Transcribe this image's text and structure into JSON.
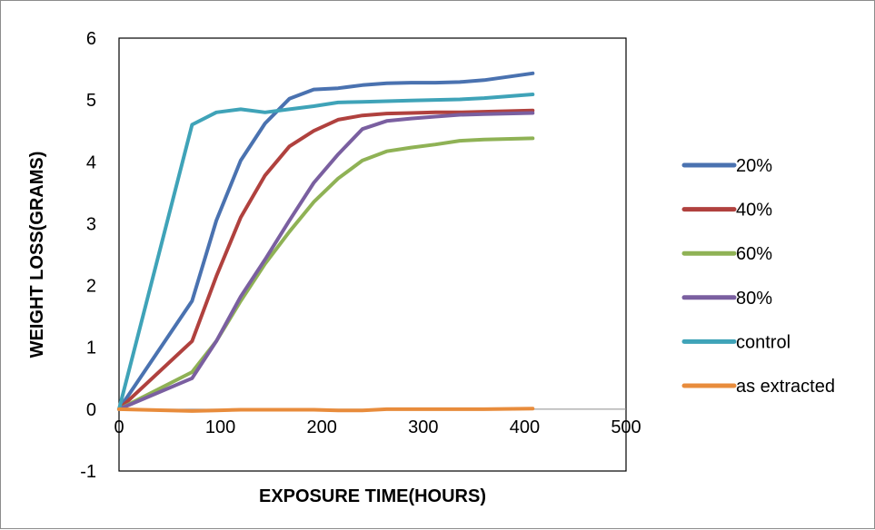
{
  "chart_data": {
    "type": "line",
    "title": "",
    "xlabel": "EXPOSURE TIME(HOURS)",
    "ylabel": "WEIGHT LOSS(GRAMS)",
    "xlim": [
      0,
      500
    ],
    "ylim": [
      -1,
      6
    ],
    "x_ticks": [
      "0",
      "100",
      "200",
      "300",
      "400",
      "500"
    ],
    "y_ticks": [
      "6",
      "5",
      "4",
      "3",
      "2",
      "1",
      "0",
      "-1"
    ],
    "grid": false,
    "legend_position": "right",
    "series": [
      {
        "name": "20%",
        "color": "#4a72b0",
        "x": [
          0,
          72,
          96,
          120,
          144,
          168,
          192,
          216,
          240,
          264,
          288,
          312,
          336,
          360,
          408
        ],
        "y": [
          0,
          1.75,
          3.05,
          4.02,
          4.62,
          5.02,
          5.17,
          5.19,
          5.24,
          5.27,
          5.28,
          5.28,
          5.29,
          5.32,
          5.43
        ]
      },
      {
        "name": "40%",
        "color": "#b0413e",
        "x": [
          0,
          72,
          96,
          120,
          144,
          168,
          192,
          216,
          240,
          264,
          288,
          312,
          336,
          360,
          408
        ],
        "y": [
          0,
          1.1,
          2.15,
          3.1,
          3.78,
          4.25,
          4.5,
          4.68,
          4.75,
          4.78,
          4.79,
          4.8,
          4.8,
          4.81,
          4.83
        ]
      },
      {
        "name": "60%",
        "color": "#8fb255",
        "x": [
          0,
          72,
          96,
          120,
          144,
          168,
          192,
          216,
          240,
          264,
          288,
          312,
          336,
          360,
          408
        ],
        "y": [
          0,
          0.6,
          1.1,
          1.75,
          2.35,
          2.87,
          3.35,
          3.73,
          4.02,
          4.17,
          4.23,
          4.28,
          4.34,
          4.36,
          4.38
        ]
      },
      {
        "name": "80%",
        "color": "#7a5fa0",
        "x": [
          0,
          72,
          96,
          120,
          144,
          168,
          192,
          216,
          240,
          264,
          288,
          312,
          336,
          360,
          408
        ],
        "y": [
          0,
          0.5,
          1.1,
          1.82,
          2.42,
          3.05,
          3.66,
          4.12,
          4.53,
          4.66,
          4.7,
          4.73,
          4.76,
          4.77,
          4.79
        ]
      },
      {
        "name": "control",
        "color": "#3fa3b8",
        "x": [
          0,
          72,
          96,
          120,
          144,
          168,
          192,
          216,
          240,
          264,
          288,
          312,
          336,
          360,
          408
        ],
        "y": [
          0,
          4.6,
          4.8,
          4.85,
          4.8,
          4.85,
          4.9,
          4.96,
          4.97,
          4.98,
          4.99,
          5.0,
          5.01,
          5.03,
          5.09
        ]
      },
      {
        "name": "as extracted",
        "color": "#e88c3c",
        "x": [
          0,
          72,
          96,
          120,
          144,
          168,
          192,
          216,
          240,
          264,
          288,
          312,
          336,
          360,
          408
        ],
        "y": [
          0,
          -0.03,
          -0.02,
          -0.01,
          -0.01,
          -0.01,
          -0.01,
          -0.02,
          -0.02,
          0,
          0,
          0,
          0,
          0,
          0.01
        ]
      }
    ]
  }
}
